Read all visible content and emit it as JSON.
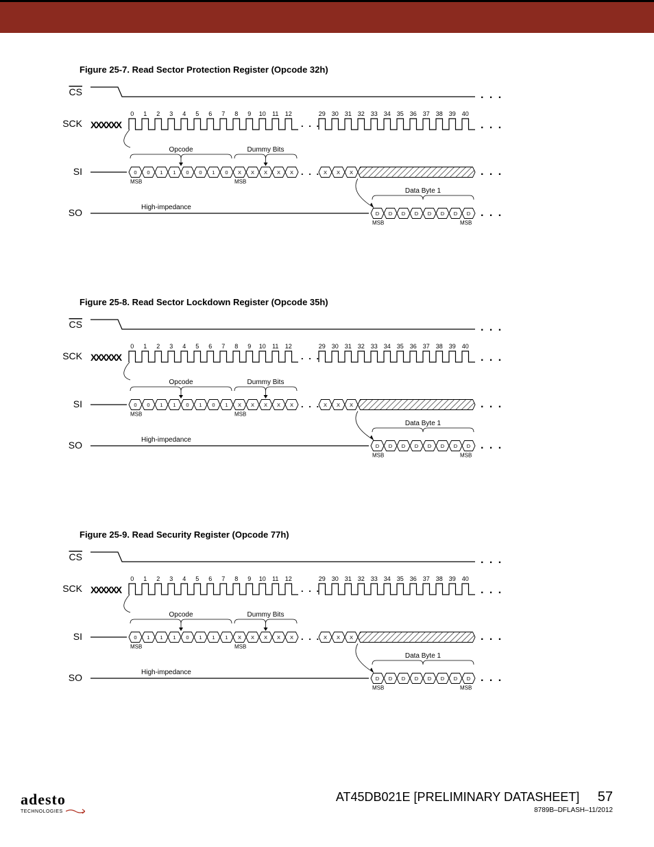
{
  "page": {
    "topbar_color": "#8b2a1f",
    "background": "#ffffff",
    "stroke": "#000000",
    "font": "Arial"
  },
  "footer": {
    "logo": "adesto",
    "logo_sub": "TECHNOLOGIES",
    "doc_title": "AT45DB021E [PRELIMINARY DATASHEET]",
    "page_num": "57",
    "doc_code": "8789B–DFLASH–11/2012"
  },
  "signals": {
    "cs": "CS",
    "sck": "SCK",
    "si": "SI",
    "so": "SO",
    "opcode": "Opcode",
    "dummy": "Dummy Bits",
    "databyte": "Data Byte 1",
    "hiz": "High-impedance",
    "msb": "MSB",
    "ellipsis": ". . .",
    "ticks_left": [
      "0",
      "1",
      "2",
      "3",
      "4",
      "5",
      "6",
      "7",
      "8",
      "9",
      "10",
      "11",
      "12"
    ],
    "ticks_right": [
      "29",
      "30",
      "31",
      "32",
      "33",
      "34",
      "35",
      "36",
      "37",
      "38",
      "39",
      "40"
    ],
    "dummy_x": "X",
    "data_d": "D"
  },
  "figures": [
    {
      "id": "25-7",
      "title": "Figure 25-7. Read Sector Protection Register (Opcode 32h)",
      "opcode_bits": [
        "0",
        "0",
        "1",
        "1",
        "0",
        "0",
        "1",
        "0"
      ]
    },
    {
      "id": "25-8",
      "title": "Figure 25-8. Read Sector Lockdown Register (Opcode 35h)",
      "opcode_bits": [
        "0",
        "0",
        "1",
        "1",
        "0",
        "1",
        "0",
        "1"
      ]
    },
    {
      "id": "25-9",
      "title": "Figure 25-9. Read Security Register (Opcode 77h)",
      "opcode_bits": [
        "0",
        "1",
        "1",
        "1",
        "0",
        "1",
        "1",
        "1"
      ]
    }
  ]
}
